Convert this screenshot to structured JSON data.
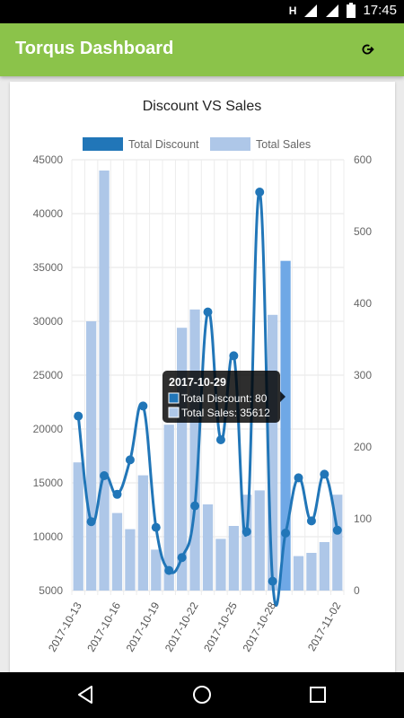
{
  "status_bar": {
    "signal_indicator": "H",
    "time": "17:45"
  },
  "app_bar": {
    "title": "Torqus Dashboard",
    "refresh_icon": "refresh-icon"
  },
  "chart_data": {
    "type": "bar",
    "title": "Discount VS Sales",
    "legend": [
      {
        "label": "Total Discount",
        "color": "#2176b8"
      },
      {
        "label": "Total Sales",
        "color": "#aec7e8"
      }
    ],
    "legend_placement": "top",
    "categories": [
      "2017-10-13",
      "2017-10-14",
      "2017-10-15",
      "2017-10-16",
      "2017-10-17",
      "2017-10-18",
      "2017-10-19",
      "2017-10-20",
      "2017-10-21",
      "2017-10-22",
      "2017-10-23",
      "2017-10-24",
      "2017-10-25",
      "2017-10-26",
      "2017-10-27",
      "2017-10-28",
      "2017-10-29",
      "2017-10-30",
      "2017-10-31",
      "2017-11-01",
      "2017-11-02"
    ],
    "x_tick_labels": [
      "2017-10-13",
      "2017-10-16",
      "2017-10-19",
      "2017-10-22",
      "2017-10-25",
      "2017-10-28",
      "2017-11-02"
    ],
    "x_tick_indices": [
      0,
      3,
      6,
      9,
      12,
      15,
      20
    ],
    "series": [
      {
        "name": "Total Sales",
        "type": "bar",
        "axis": "left",
        "values": [
          16900,
          30000,
          44000,
          12200,
          10700,
          15700,
          8800,
          20400,
          29400,
          31100,
          13000,
          9800,
          11000,
          13900,
          14300,
          30600,
          35612,
          8200,
          8500,
          9500,
          13900
        ]
      },
      {
        "name": "Total Discount",
        "type": "line",
        "axis": "right",
        "values": [
          243,
          96,
          160,
          134,
          182,
          257,
          88,
          28,
          46,
          118,
          388,
          210,
          327,
          82,
          555,
          13,
          80,
          157,
          97,
          162,
          84
        ]
      }
    ],
    "y_left": {
      "min": 5000,
      "max": 45000,
      "ticks": [
        5000,
        10000,
        15000,
        20000,
        25000,
        30000,
        35000,
        40000,
        45000
      ]
    },
    "y_right": {
      "min": 0,
      "max": 600,
      "ticks": [
        0,
        100,
        200,
        300,
        400,
        500,
        600
      ]
    },
    "grid": true,
    "highlighted_index": 16,
    "tooltip": {
      "title": "2017-10-29",
      "line1": "Total Discount: 80",
      "line2": "Total Sales: 35612"
    }
  },
  "nav_bar": {
    "back": "back-icon",
    "home": "home-icon",
    "recents": "recents-icon"
  }
}
